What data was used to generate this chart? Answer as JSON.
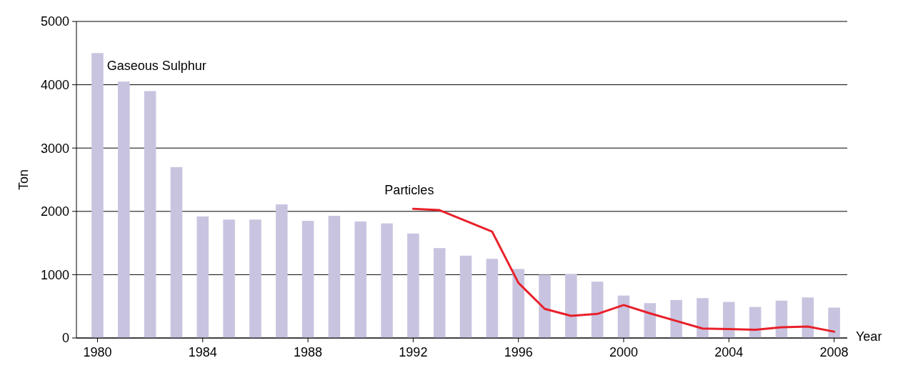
{
  "chart_data": {
    "type": "bar",
    "xlabel": "Year",
    "ylabel": "Ton",
    "x": [
      1980,
      1981,
      1982,
      1983,
      1984,
      1985,
      1986,
      1987,
      1988,
      1989,
      1990,
      1991,
      1992,
      1993,
      1994,
      1995,
      1996,
      1997,
      1998,
      1999,
      2000,
      2001,
      2002,
      2003,
      2004,
      2005,
      2006,
      2007,
      2008
    ],
    "series": [
      {
        "name": "Gaseous Sulphur",
        "color": "#c8c4e0",
        "values": [
          4500,
          4050,
          3900,
          2700,
          1920,
          1870,
          1870,
          2110,
          1850,
          1930,
          1840,
          1810,
          1650,
          1420,
          1300,
          1250,
          1090,
          1000,
          1010,
          890,
          670,
          550,
          600,
          630,
          570,
          490,
          590,
          640,
          480
        ]
      },
      {
        "name": "Particles",
        "type": "line",
        "color": "#e8202a",
        "x": [
          1992,
          1993,
          1994,
          1995,
          1996,
          1997,
          1998,
          1999,
          2000,
          2001,
          2002,
          2003,
          2004,
          2005,
          2006,
          2007,
          2008
        ],
        "values": [
          2040,
          2020,
          1850,
          1680,
          870,
          460,
          350,
          380,
          520,
          390,
          270,
          150,
          140,
          130,
          170,
          180,
          100
        ]
      }
    ],
    "xlim": [
      1979.2,
      2008.5
    ],
    "xticks": [
      1980,
      1984,
      1988,
      1992,
      1996,
      2000,
      2004,
      2008
    ],
    "ylim": [
      0,
      5000
    ],
    "yticks": [
      0,
      1000,
      2000,
      3000,
      4000,
      5000
    ],
    "grid": "y",
    "line_style": "solid",
    "marker": "none"
  }
}
